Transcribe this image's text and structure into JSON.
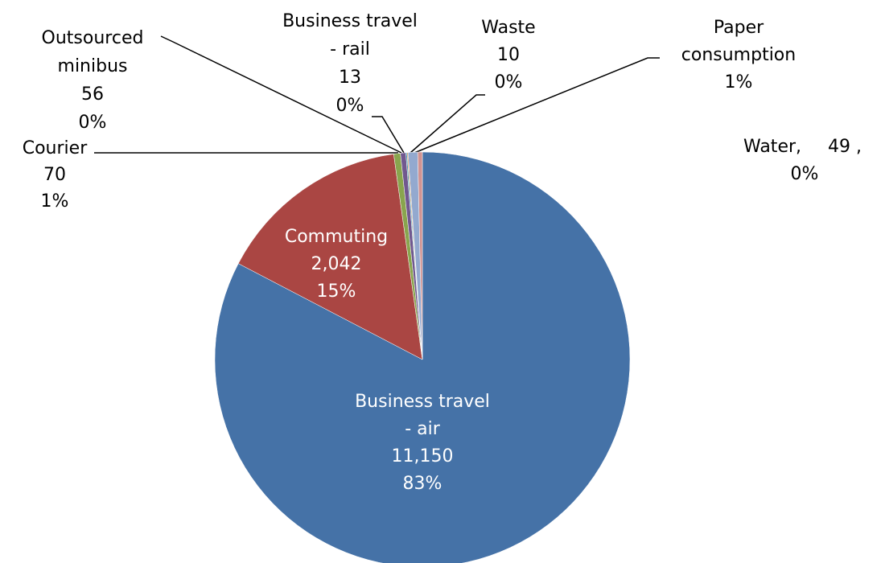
{
  "chart_data": {
    "type": "pie",
    "categories": [
      "Business travel\n- air",
      "Commuting",
      "Courier",
      "Outsourced\nminibus",
      "Business travel\n- rail",
      "Waste",
      "Paper\nconsumption",
      "Water,"
    ],
    "values": [
      11150,
      2042,
      70,
      56,
      13,
      10,
      100,
      49
    ],
    "value_labels": [
      "11,150",
      "2,042",
      "70",
      "56",
      "13",
      "10",
      null,
      "49 ,"
    ],
    "percents": [
      83,
      15,
      1,
      0,
      0,
      0,
      1,
      0
    ],
    "percent_labels": [
      "83%",
      "15%",
      "1%",
      "0%",
      "0%",
      "0%",
      "1%",
      "0%"
    ],
    "colors": [
      "#4572a7",
      "#aa4643",
      "#89a54e",
      "#71588f",
      "#4198af",
      "#db843d",
      "#93a9cf",
      "#d19392"
    ]
  }
}
